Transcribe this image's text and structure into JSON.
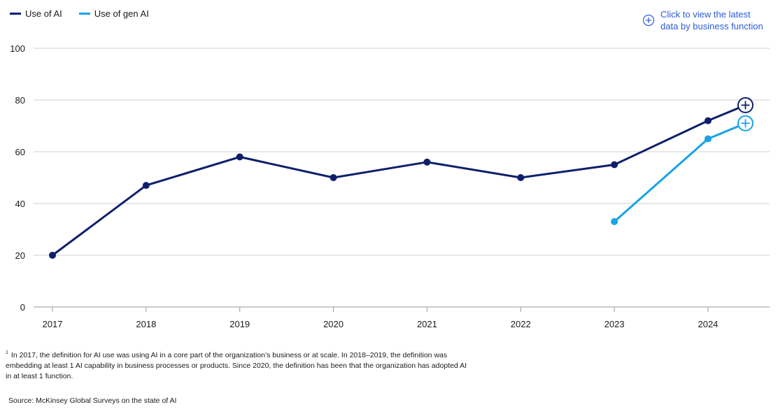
{
  "legend": {
    "items": [
      {
        "label": "Use of AI",
        "color": "#0d1f6b"
      },
      {
        "label": "Use of gen AI",
        "color": "#18a3e6"
      }
    ]
  },
  "cta": {
    "line1": "Click to view the latest",
    "line2": "data by business function",
    "icon": "plus-circle-icon",
    "color": "#2b5bd7"
  },
  "chart_data": {
    "type": "line",
    "title": "",
    "xlabel": "",
    "ylabel": "",
    "categories": [
      "2017",
      "2018",
      "2019",
      "2020",
      "2021",
      "2022",
      "2023",
      "2024"
    ],
    "ylim": [
      0,
      100
    ],
    "yticks": [
      0,
      20,
      40,
      60,
      80,
      100
    ],
    "grid": true,
    "legend_position": "top-left",
    "series": [
      {
        "name": "Use of AI",
        "color": "#0d1f6b",
        "x": [
          2017,
          2018,
          2019,
          2020,
          2021,
          2022,
          2023,
          2024,
          2024.4
        ],
        "y": [
          20,
          47,
          58,
          50,
          56,
          50,
          55,
          72,
          78
        ],
        "marker_points": [
          0,
          1,
          2,
          3,
          4,
          5,
          6,
          7
        ],
        "end_marker": "plus-circle-icon"
      },
      {
        "name": "Use of gen AI",
        "color": "#18a3e6",
        "x": [
          2023,
          2024,
          2024.4
        ],
        "y": [
          33,
          65,
          71
        ],
        "marker_points": [
          0,
          1
        ],
        "end_marker": "plus-circle-icon"
      }
    ]
  },
  "footnote": {
    "marker": "1",
    "text": "In 2017, the definition for AI use was using AI in a core part of the organization’s business or at scale. In 2018–2019, the definition was embedding at least 1 AI capability in business processes or products. Since 2020, the definition has been that the organization has adopted AI in at least 1 function."
  },
  "source": "Source: McKinsey Global Surveys on the state of AI"
}
